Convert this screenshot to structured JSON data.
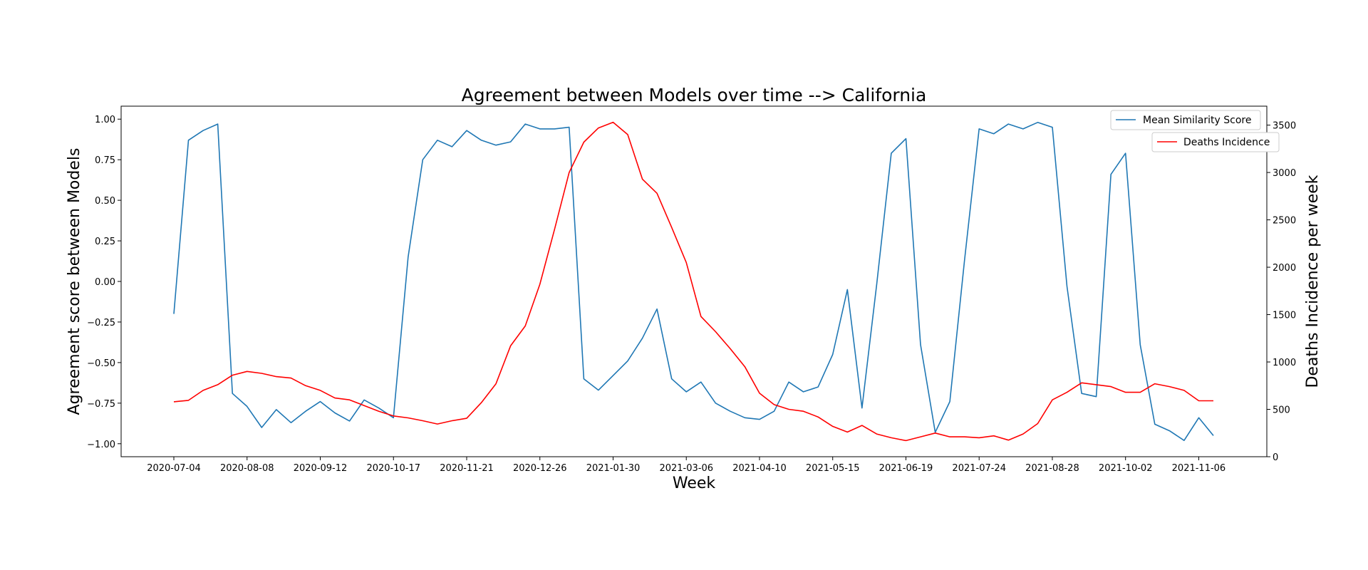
{
  "chart_data": {
    "type": "line",
    "title": "Agreement between Models over time --> California",
    "xlabel": "Week",
    "ylabel_left": "Agreement score between Models",
    "ylabel_right": "Deaths Incidence per week",
    "ylim_left": [
      -1.08,
      1.08
    ],
    "ylim_right": [
      0,
      3700
    ],
    "yticks_left": [
      "1.00",
      "0.75",
      "0.50",
      "0.25",
      "0.00",
      "−0.25",
      "−0.50",
      "−0.75",
      "−1.00"
    ],
    "yticks_left_values": [
      1.0,
      0.75,
      0.5,
      0.25,
      0.0,
      -0.25,
      -0.5,
      -0.75,
      -1.0
    ],
    "yticks_right": [
      "0",
      "500",
      "1000",
      "1500",
      "2000",
      "2500",
      "3000",
      "3500"
    ],
    "yticks_right_values": [
      0,
      500,
      1000,
      1500,
      2000,
      2500,
      3000,
      3500
    ],
    "xticks": [
      "2020-07-04",
      "2020-08-08",
      "2020-09-12",
      "2020-10-17",
      "2020-11-21",
      "2020-12-26",
      "2021-01-30",
      "2021-03-06",
      "2021-04-10",
      "2021-05-15",
      "2021-06-19",
      "2021-07-24",
      "2021-08-28",
      "2021-10-02",
      "2021-11-06"
    ],
    "xticks_week_index": [
      0,
      5,
      10,
      15,
      20,
      25,
      30,
      35,
      40,
      45,
      50,
      55,
      60,
      65,
      70
    ],
    "week_count": 72,
    "grid": false,
    "legend": [
      "top-right"
    ],
    "series": [
      {
        "name": "Mean Similarity Score",
        "axis": "left",
        "color": "#1f77b4",
        "values": [
          -0.2,
          0.87,
          0.93,
          0.97,
          -0.69,
          -0.77,
          -0.9,
          -0.79,
          -0.87,
          -0.8,
          -0.74,
          -0.81,
          -0.86,
          -0.73,
          -0.78,
          -0.84,
          0.15,
          0.75,
          0.87,
          0.83,
          0.93,
          0.87,
          0.84,
          0.86,
          0.97,
          0.94,
          0.94,
          0.95,
          -0.6,
          -0.67,
          -0.58,
          -0.49,
          -0.35,
          -0.17,
          -0.6,
          -0.68,
          -0.62,
          -0.75,
          -0.8,
          -0.84,
          -0.85,
          -0.8,
          -0.62,
          -0.68,
          -0.65,
          -0.45,
          -0.05,
          -0.78,
          -0.02,
          0.79,
          0.88,
          -0.39,
          -0.93,
          -0.74,
          0.13,
          0.94,
          0.91,
          0.97,
          0.94,
          0.98,
          0.95,
          -0.03,
          -0.69,
          -0.71,
          0.66,
          0.79,
          -0.39,
          -0.88,
          -0.92,
          -0.98,
          -0.84,
          -0.95
        ]
      },
      {
        "name": "Deaths Incidence",
        "axis": "right",
        "color": "#ff0000",
        "values": [
          580,
          595,
          700,
          760,
          860,
          900,
          880,
          845,
          830,
          750,
          700,
          620,
          600,
          540,
          480,
          430,
          410,
          380,
          345,
          380,
          405,
          570,
          770,
          1170,
          1380,
          1820,
          2400,
          3000,
          3320,
          3470,
          3530,
          3400,
          2930,
          2780,
          2420,
          2050,
          1480,
          1320,
          1140,
          950,
          670,
          550,
          500,
          480,
          420,
          320,
          260,
          330,
          240,
          200,
          170,
          210,
          250,
          210,
          210,
          200,
          220,
          175,
          240,
          350,
          600,
          680,
          780,
          760,
          740,
          680,
          680,
          770,
          740,
          700,
          590,
          590
        ]
      }
    ]
  }
}
